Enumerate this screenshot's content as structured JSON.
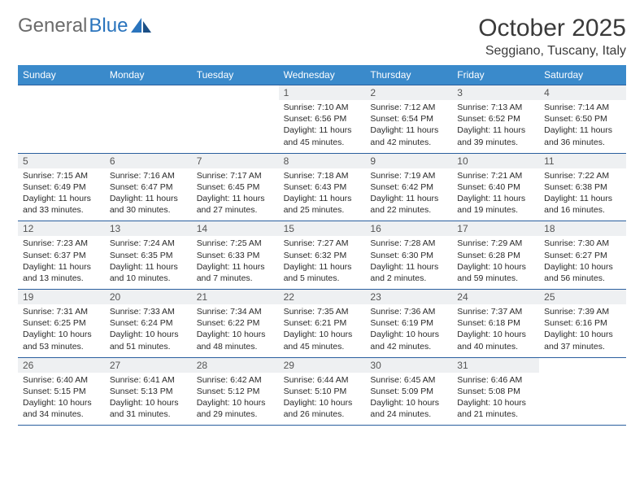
{
  "logo": {
    "text1": "General",
    "text2": "Blue"
  },
  "title": "October 2025",
  "location": "Seggiano, Tuscany, Italy",
  "theme": {
    "header_bg": "#3a8acb",
    "header_text": "#ffffff",
    "divider": "#2a5f9e",
    "daynum_bg": "#eef0f2",
    "text": "#2a2a2a",
    "logo_gray": "#6b6b6b",
    "logo_blue": "#2a74bd",
    "page_bg": "#ffffff"
  },
  "fonts": {
    "title_size": 30,
    "location_size": 16,
    "dayname_size": 12,
    "daynum_size": 12,
    "info_size": 10.5
  },
  "daynames": [
    "Sunday",
    "Monday",
    "Tuesday",
    "Wednesday",
    "Thursday",
    "Friday",
    "Saturday"
  ],
  "weeks": [
    [
      {
        "blank": true
      },
      {
        "blank": true
      },
      {
        "blank": true
      },
      {
        "n": "1",
        "sunrise": "7:10 AM",
        "sunset": "6:56 PM",
        "daylight": "11 hours and 45 minutes."
      },
      {
        "n": "2",
        "sunrise": "7:12 AM",
        "sunset": "6:54 PM",
        "daylight": "11 hours and 42 minutes."
      },
      {
        "n": "3",
        "sunrise": "7:13 AM",
        "sunset": "6:52 PM",
        "daylight": "11 hours and 39 minutes."
      },
      {
        "n": "4",
        "sunrise": "7:14 AM",
        "sunset": "6:50 PM",
        "daylight": "11 hours and 36 minutes."
      }
    ],
    [
      {
        "n": "5",
        "sunrise": "7:15 AM",
        "sunset": "6:49 PM",
        "daylight": "11 hours and 33 minutes."
      },
      {
        "n": "6",
        "sunrise": "7:16 AM",
        "sunset": "6:47 PM",
        "daylight": "11 hours and 30 minutes."
      },
      {
        "n": "7",
        "sunrise": "7:17 AM",
        "sunset": "6:45 PM",
        "daylight": "11 hours and 27 minutes."
      },
      {
        "n": "8",
        "sunrise": "7:18 AM",
        "sunset": "6:43 PM",
        "daylight": "11 hours and 25 minutes."
      },
      {
        "n": "9",
        "sunrise": "7:19 AM",
        "sunset": "6:42 PM",
        "daylight": "11 hours and 22 minutes."
      },
      {
        "n": "10",
        "sunrise": "7:21 AM",
        "sunset": "6:40 PM",
        "daylight": "11 hours and 19 minutes."
      },
      {
        "n": "11",
        "sunrise": "7:22 AM",
        "sunset": "6:38 PM",
        "daylight": "11 hours and 16 minutes."
      }
    ],
    [
      {
        "n": "12",
        "sunrise": "7:23 AM",
        "sunset": "6:37 PM",
        "daylight": "11 hours and 13 minutes."
      },
      {
        "n": "13",
        "sunrise": "7:24 AM",
        "sunset": "6:35 PM",
        "daylight": "11 hours and 10 minutes."
      },
      {
        "n": "14",
        "sunrise": "7:25 AM",
        "sunset": "6:33 PM",
        "daylight": "11 hours and 7 minutes."
      },
      {
        "n": "15",
        "sunrise": "7:27 AM",
        "sunset": "6:32 PM",
        "daylight": "11 hours and 5 minutes."
      },
      {
        "n": "16",
        "sunrise": "7:28 AM",
        "sunset": "6:30 PM",
        "daylight": "11 hours and 2 minutes."
      },
      {
        "n": "17",
        "sunrise": "7:29 AM",
        "sunset": "6:28 PM",
        "daylight": "10 hours and 59 minutes."
      },
      {
        "n": "18",
        "sunrise": "7:30 AM",
        "sunset": "6:27 PM",
        "daylight": "10 hours and 56 minutes."
      }
    ],
    [
      {
        "n": "19",
        "sunrise": "7:31 AM",
        "sunset": "6:25 PM",
        "daylight": "10 hours and 53 minutes."
      },
      {
        "n": "20",
        "sunrise": "7:33 AM",
        "sunset": "6:24 PM",
        "daylight": "10 hours and 51 minutes."
      },
      {
        "n": "21",
        "sunrise": "7:34 AM",
        "sunset": "6:22 PM",
        "daylight": "10 hours and 48 minutes."
      },
      {
        "n": "22",
        "sunrise": "7:35 AM",
        "sunset": "6:21 PM",
        "daylight": "10 hours and 45 minutes."
      },
      {
        "n": "23",
        "sunrise": "7:36 AM",
        "sunset": "6:19 PM",
        "daylight": "10 hours and 42 minutes."
      },
      {
        "n": "24",
        "sunrise": "7:37 AM",
        "sunset": "6:18 PM",
        "daylight": "10 hours and 40 minutes."
      },
      {
        "n": "25",
        "sunrise": "7:39 AM",
        "sunset": "6:16 PM",
        "daylight": "10 hours and 37 minutes."
      }
    ],
    [
      {
        "n": "26",
        "sunrise": "6:40 AM",
        "sunset": "5:15 PM",
        "daylight": "10 hours and 34 minutes."
      },
      {
        "n": "27",
        "sunrise": "6:41 AM",
        "sunset": "5:13 PM",
        "daylight": "10 hours and 31 minutes."
      },
      {
        "n": "28",
        "sunrise": "6:42 AM",
        "sunset": "5:12 PM",
        "daylight": "10 hours and 29 minutes."
      },
      {
        "n": "29",
        "sunrise": "6:44 AM",
        "sunset": "5:10 PM",
        "daylight": "10 hours and 26 minutes."
      },
      {
        "n": "30",
        "sunrise": "6:45 AM",
        "sunset": "5:09 PM",
        "daylight": "10 hours and 24 minutes."
      },
      {
        "n": "31",
        "sunrise": "6:46 AM",
        "sunset": "5:08 PM",
        "daylight": "10 hours and 21 minutes."
      },
      {
        "blank": true
      }
    ]
  ],
  "labels": {
    "sunrise": "Sunrise:",
    "sunset": "Sunset:",
    "daylight": "Daylight:"
  }
}
